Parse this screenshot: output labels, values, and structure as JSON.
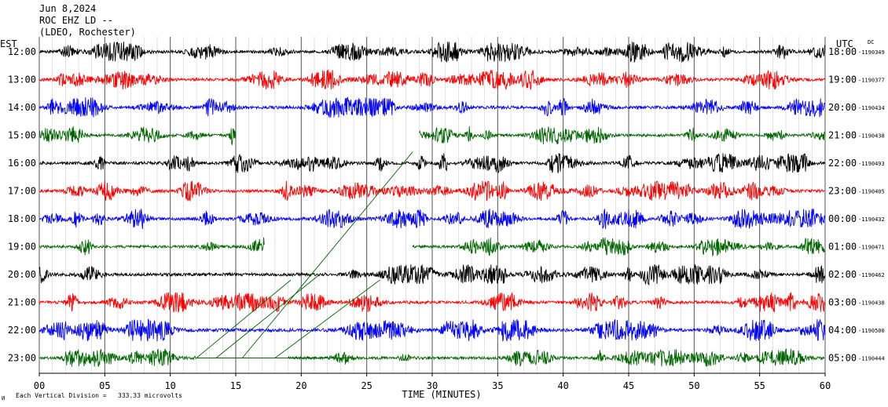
{
  "header": {
    "date": "Jun 8,2024",
    "station": "ROC EHZ LD --",
    "network": "(LDEO, Rochester)"
  },
  "left_axis_title": "EST",
  "right_axis_title": "UTC",
  "dc_label": "DC",
  "footer": {
    "scale_prefix": "Each Vertical Division =",
    "scale_value": "333.33 microvolts",
    "corner_mark": "И"
  },
  "colors": {
    "black": "#000000",
    "red": "#ff0000",
    "blue": "#0000ff",
    "green": "#006600",
    "grid": "#888888"
  },
  "chart_data": {
    "type": "line",
    "title": "",
    "xlabel": "TIME (MINUTES)",
    "ylabel": "",
    "xlim": [
      0,
      60
    ],
    "x_ticks": [
      "00",
      "05",
      "10",
      "15",
      "20",
      "25",
      "30",
      "35",
      "40",
      "45",
      "50",
      "55",
      "60"
    ],
    "grid": "vertical lines every minute",
    "rows": [
      {
        "est": "12:00",
        "utc": "18:00",
        "dc": "-1190349",
        "color": "black",
        "amplitude": 1.0,
        "gaps": []
      },
      {
        "est": "13:00",
        "utc": "19:00",
        "dc": "-1190377",
        "color": "red",
        "amplitude": 1.0,
        "gaps": []
      },
      {
        "est": "14:00",
        "utc": "20:00",
        "dc": "-1190434",
        "color": "blue",
        "amplitude": 1.0,
        "gaps": []
      },
      {
        "est": "15:00",
        "utc": "21:00",
        "dc": "-1190438",
        "color": "green",
        "amplitude": 0.9,
        "gaps": [
          [
            15.0,
            29.0
          ]
        ]
      },
      {
        "est": "16:00",
        "utc": "22:00",
        "dc": "-1190493",
        "color": "black",
        "amplitude": 1.0,
        "gaps": []
      },
      {
        "est": "17:00",
        "utc": "23:00",
        "dc": "-1190405",
        "color": "red",
        "amplitude": 1.0,
        "gaps": []
      },
      {
        "est": "18:00",
        "utc": "00:00",
        "dc": "-1190432",
        "color": "blue",
        "amplitude": 1.0,
        "gaps": []
      },
      {
        "est": "19:00",
        "utc": "01:00",
        "dc": "-1190471",
        "color": "green",
        "amplitude": 0.9,
        "gaps": [
          [
            17.2,
            28.5
          ]
        ]
      },
      {
        "est": "20:00",
        "utc": "02:00",
        "dc": "-1190462",
        "color": "black",
        "amplitude": 1.0,
        "gaps": []
      },
      {
        "est": "21:00",
        "utc": "03:00",
        "dc": "-1190438",
        "color": "red",
        "amplitude": 1.0,
        "gaps": []
      },
      {
        "est": "22:00",
        "utc": "04:00",
        "dc": "-1190500",
        "color": "blue",
        "amplitude": 1.1,
        "gaps": []
      },
      {
        "est": "23:00",
        "utc": "05:00",
        "dc": "-1190444",
        "color": "green",
        "amplitude": 0.9,
        "gaps": [
          [
            12.0,
            19.0
          ]
        ]
      }
    ],
    "glitch_lines": [
      {
        "from": [
          12.0,
          14.6
        ],
        "to": [
          19.2,
          11.8
        ]
      },
      {
        "from": [
          13.5,
          14.6
        ],
        "to": [
          21.4,
          11.6
        ]
      },
      {
        "from": [
          15.5,
          14.6
        ],
        "to": [
          28.5,
          7.2
        ]
      },
      {
        "from": [
          18.0,
          14.6
        ],
        "to": [
          26.0,
          11.8
        ]
      },
      {
        "from": [
          12.0,
          14.6
        ],
        "to": [
          24.0,
          14.6
        ]
      }
    ]
  }
}
